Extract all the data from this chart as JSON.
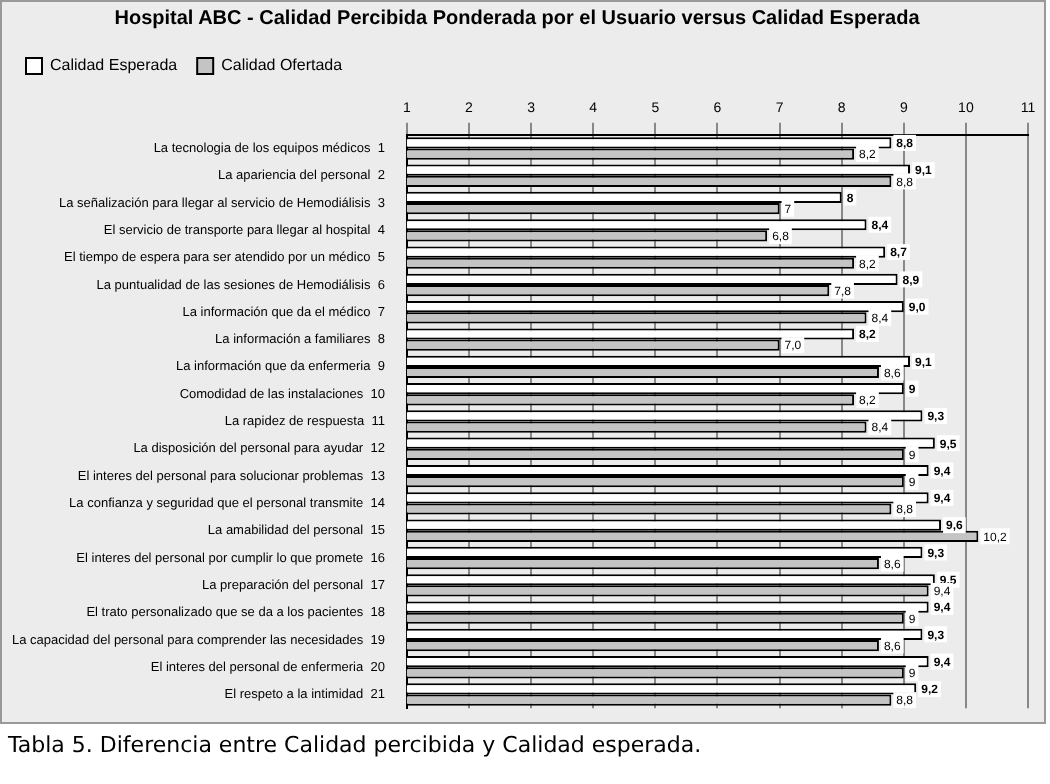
{
  "chart_data": {
    "type": "bar",
    "orientation": "horizontal",
    "title": "Hospital ABC - Calidad Percibida Ponderada por el Usuario versus Calidad Esperada",
    "categories": [
      "La tecnologia de los equipos médicos  1",
      "La apariencia del personal  2",
      "La señalización para llegar al servicio de Hemodiálisis  3",
      "El servicio de transporte para llegar al hospital  4",
      "El tiempo de espera para ser atendido por un médico  5",
      "La puntualidad de las sesiones de Hemodiálisis  6",
      "La información que da el médico  7",
      "La información a familiares  8",
      "La información que da enfermeria  9",
      "Comodidad de las instalaciones  10",
      "La rapidez de respuesta  11",
      "La disposición del personal para ayudar  12",
      "El interes del personal para solucionar problemas  13",
      "La confianza y seguridad que el personal transmite  14",
      "La amabilidad del personal  15",
      "El interes del personal por cumplir lo que promete  16",
      "La preparación del personal  17",
      "El trato personalizado que se da a los pacientes  18",
      "La capacidad del personal para comprender las necesidades  19",
      "El interes del personal de enfermeria  20",
      "El respeto a la intimidad  21"
    ],
    "series": [
      {
        "name": "Calidad Esperada",
        "color": "#ffffff",
        "values": [
          8.8,
          9.1,
          8,
          8.4,
          8.7,
          8.9,
          9.0,
          8.2,
          9.1,
          9,
          9.3,
          9.5,
          9.4,
          9.4,
          9.6,
          9.3,
          9.5,
          9.4,
          9.3,
          9.4,
          9.2
        ],
        "value_labels": [
          "8,8",
          "9,1",
          "8",
          "8,4",
          "8,7",
          "8,9",
          "9,0",
          "8,2",
          "9,1",
          "9",
          "9,3",
          "9,5",
          "9,4",
          "9,4",
          "9,6",
          "9,3",
          "9,5",
          "9,4",
          "9,3",
          "9,4",
          "9,2"
        ]
      },
      {
        "name": "Calidad Ofertada",
        "color": "#c4c4c4",
        "values": [
          8.2,
          8.8,
          7,
          6.8,
          8.2,
          7.8,
          8.4,
          7.0,
          8.6,
          8.2,
          8.4,
          9,
          9,
          8.8,
          10.2,
          8.6,
          9.4,
          9,
          8.6,
          9,
          8.8
        ],
        "value_labels": [
          "8,2",
          "8,8",
          "7",
          "6,8",
          "8,2",
          "7,8",
          "8,4",
          "7,0",
          "8,6",
          "8,2",
          "8,4",
          "9",
          "9",
          "8,8",
          "10,2",
          "8,6",
          "9,4",
          "9",
          "8,6",
          "9",
          "8,8"
        ]
      }
    ],
    "xlim": [
      1,
      11
    ],
    "xticks": [
      1,
      2,
      3,
      4,
      5,
      6,
      7,
      8,
      9,
      10,
      11
    ],
    "grid": "x",
    "legend": "top left",
    "annotations": [
      "Tabla 5. Diferencia entre Calidad percibida y Calidad esperada."
    ]
  }
}
